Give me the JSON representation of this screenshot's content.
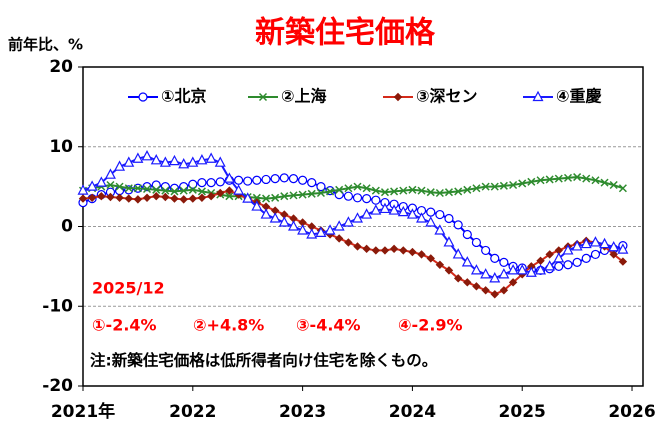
{
  "chart_data": {
    "type": "line",
    "title": "新築住宅価格",
    "ylabel": "前年比、%",
    "xlim": [
      2021,
      2026.1
    ],
    "xticks": [
      {
        "value": 2021,
        "label": "2021年"
      },
      2022,
      2023,
      2024,
      2025,
      2026
    ],
    "ylim": [
      -20,
      20
    ],
    "yticks": [
      -20,
      -10,
      0,
      10,
      20
    ],
    "grid": true,
    "legend": "top",
    "x": [
      2021,
      2021.083,
      2021.167,
      2021.25,
      2021.333,
      2021.417,
      2021.5,
      2021.583,
      2021.667,
      2021.75,
      2021.833,
      2021.917,
      2022,
      2022.083,
      2022.167,
      2022.25,
      2022.333,
      2022.417,
      2022.5,
      2022.583,
      2022.667,
      2022.75,
      2022.833,
      2022.917,
      2023,
      2023.083,
      2023.167,
      2023.25,
      2023.333,
      2023.417,
      2023.5,
      2023.583,
      2023.667,
      2023.75,
      2023.833,
      2023.917,
      2024,
      2024.083,
      2024.167,
      2024.25,
      2024.333,
      2024.417,
      2024.5,
      2024.583,
      2024.667,
      2024.75,
      2024.833,
      2024.917,
      2025,
      2025.083,
      2025.167,
      2025.25,
      2025.333,
      2025.417,
      2025.5,
      2025.583,
      2025.667,
      2025.75,
      2025.833,
      2025.917
    ],
    "series": [
      {
        "name": "①北京",
        "color": "#0000ff",
        "marker": "circle",
        "values": [
          3.0,
          3.5,
          4.0,
          4.3,
          4.5,
          4.6,
          4.8,
          5.0,
          5.2,
          5.0,
          4.8,
          5.0,
          5.3,
          5.5,
          5.5,
          5.6,
          5.8,
          5.8,
          5.7,
          5.8,
          5.9,
          6.0,
          6.1,
          6.0,
          5.8,
          5.5,
          5.0,
          4.5,
          4.0,
          3.8,
          3.6,
          3.5,
          3.3,
          3.0,
          2.8,
          2.5,
          2.3,
          2.0,
          1.8,
          1.5,
          1.0,
          0.2,
          -1.0,
          -2.0,
          -3.0,
          -4.0,
          -4.5,
          -5.0,
          -5.2,
          -5.4,
          -5.5,
          -5.3,
          -5.0,
          -4.8,
          -4.5,
          -4.0,
          -3.5,
          -3.0,
          -2.8,
          -2.4
        ]
      },
      {
        "name": "②上海",
        "color": "#2e8b2e",
        "marker": "x",
        "values": [
          4.5,
          4.8,
          5.0,
          5.2,
          5.0,
          4.8,
          4.8,
          4.7,
          4.6,
          4.5,
          4.4,
          4.5,
          4.6,
          4.4,
          4.2,
          4.0,
          3.8,
          3.8,
          3.7,
          3.6,
          3.5,
          3.6,
          3.8,
          3.9,
          4.0,
          4.1,
          4.2,
          4.4,
          4.6,
          4.8,
          5.0,
          4.8,
          4.5,
          4.3,
          4.4,
          4.5,
          4.6,
          4.5,
          4.3,
          4.2,
          4.3,
          4.4,
          4.6,
          4.8,
          5.0,
          5.0,
          5.1,
          5.2,
          5.4,
          5.6,
          5.8,
          5.9,
          6.0,
          6.1,
          6.2,
          6.0,
          5.8,
          5.5,
          5.2,
          4.8
        ]
      },
      {
        "name": "③深セン",
        "color": "#d42a1a",
        "marker": "diamond",
        "values": [
          3.5,
          3.6,
          3.8,
          3.7,
          3.6,
          3.5,
          3.4,
          3.6,
          3.8,
          3.7,
          3.5,
          3.4,
          3.5,
          3.6,
          3.8,
          4.2,
          4.5,
          4.0,
          3.5,
          3.0,
          2.5,
          2.0,
          1.5,
          1.0,
          0.5,
          0.0,
          -0.5,
          -1.0,
          -1.5,
          -2.0,
          -2.5,
          -2.8,
          -3.0,
          -3.0,
          -2.8,
          -3.0,
          -3.2,
          -3.5,
          -4.0,
          -4.8,
          -5.5,
          -6.5,
          -7.0,
          -7.5,
          -8.0,
          -8.5,
          -8.0,
          -7.0,
          -6.0,
          -5.0,
          -4.3,
          -3.5,
          -3.0,
          -2.5,
          -2.2,
          -1.8,
          -2.0,
          -2.5,
          -3.5,
          -4.4
        ]
      },
      {
        "name": "④重慶",
        "color": "#1a1aff",
        "marker": "triangle",
        "values": [
          4.5,
          5.0,
          5.5,
          6.5,
          7.5,
          8.0,
          8.5,
          8.8,
          8.3,
          8.0,
          8.2,
          7.8,
          8.0,
          8.3,
          8.5,
          8.0,
          6.0,
          4.5,
          3.5,
          2.5,
          1.5,
          1.0,
          0.5,
          0.0,
          -0.5,
          -1.0,
          -0.8,
          -0.5,
          0.0,
          0.5,
          1.0,
          1.5,
          2.0,
          2.2,
          2.0,
          1.8,
          1.5,
          1.0,
          0.5,
          -0.5,
          -2.0,
          -3.5,
          -4.5,
          -5.5,
          -6.0,
          -6.5,
          -6.0,
          -5.5,
          -5.5,
          -5.8,
          -5.5,
          -5.0,
          -4.0,
          -3.0,
          -2.5,
          -2.2,
          -2.0,
          -2.2,
          -2.6,
          -2.9
        ]
      }
    ],
    "annotations": {
      "date": "2025/12",
      "latest": [
        "①-2.4%",
        "②+4.8%",
        "③-4.4%",
        "④-2.9%"
      ],
      "note": "注:新築住宅価格は低所得者向け住宅を除くもの。"
    }
  }
}
